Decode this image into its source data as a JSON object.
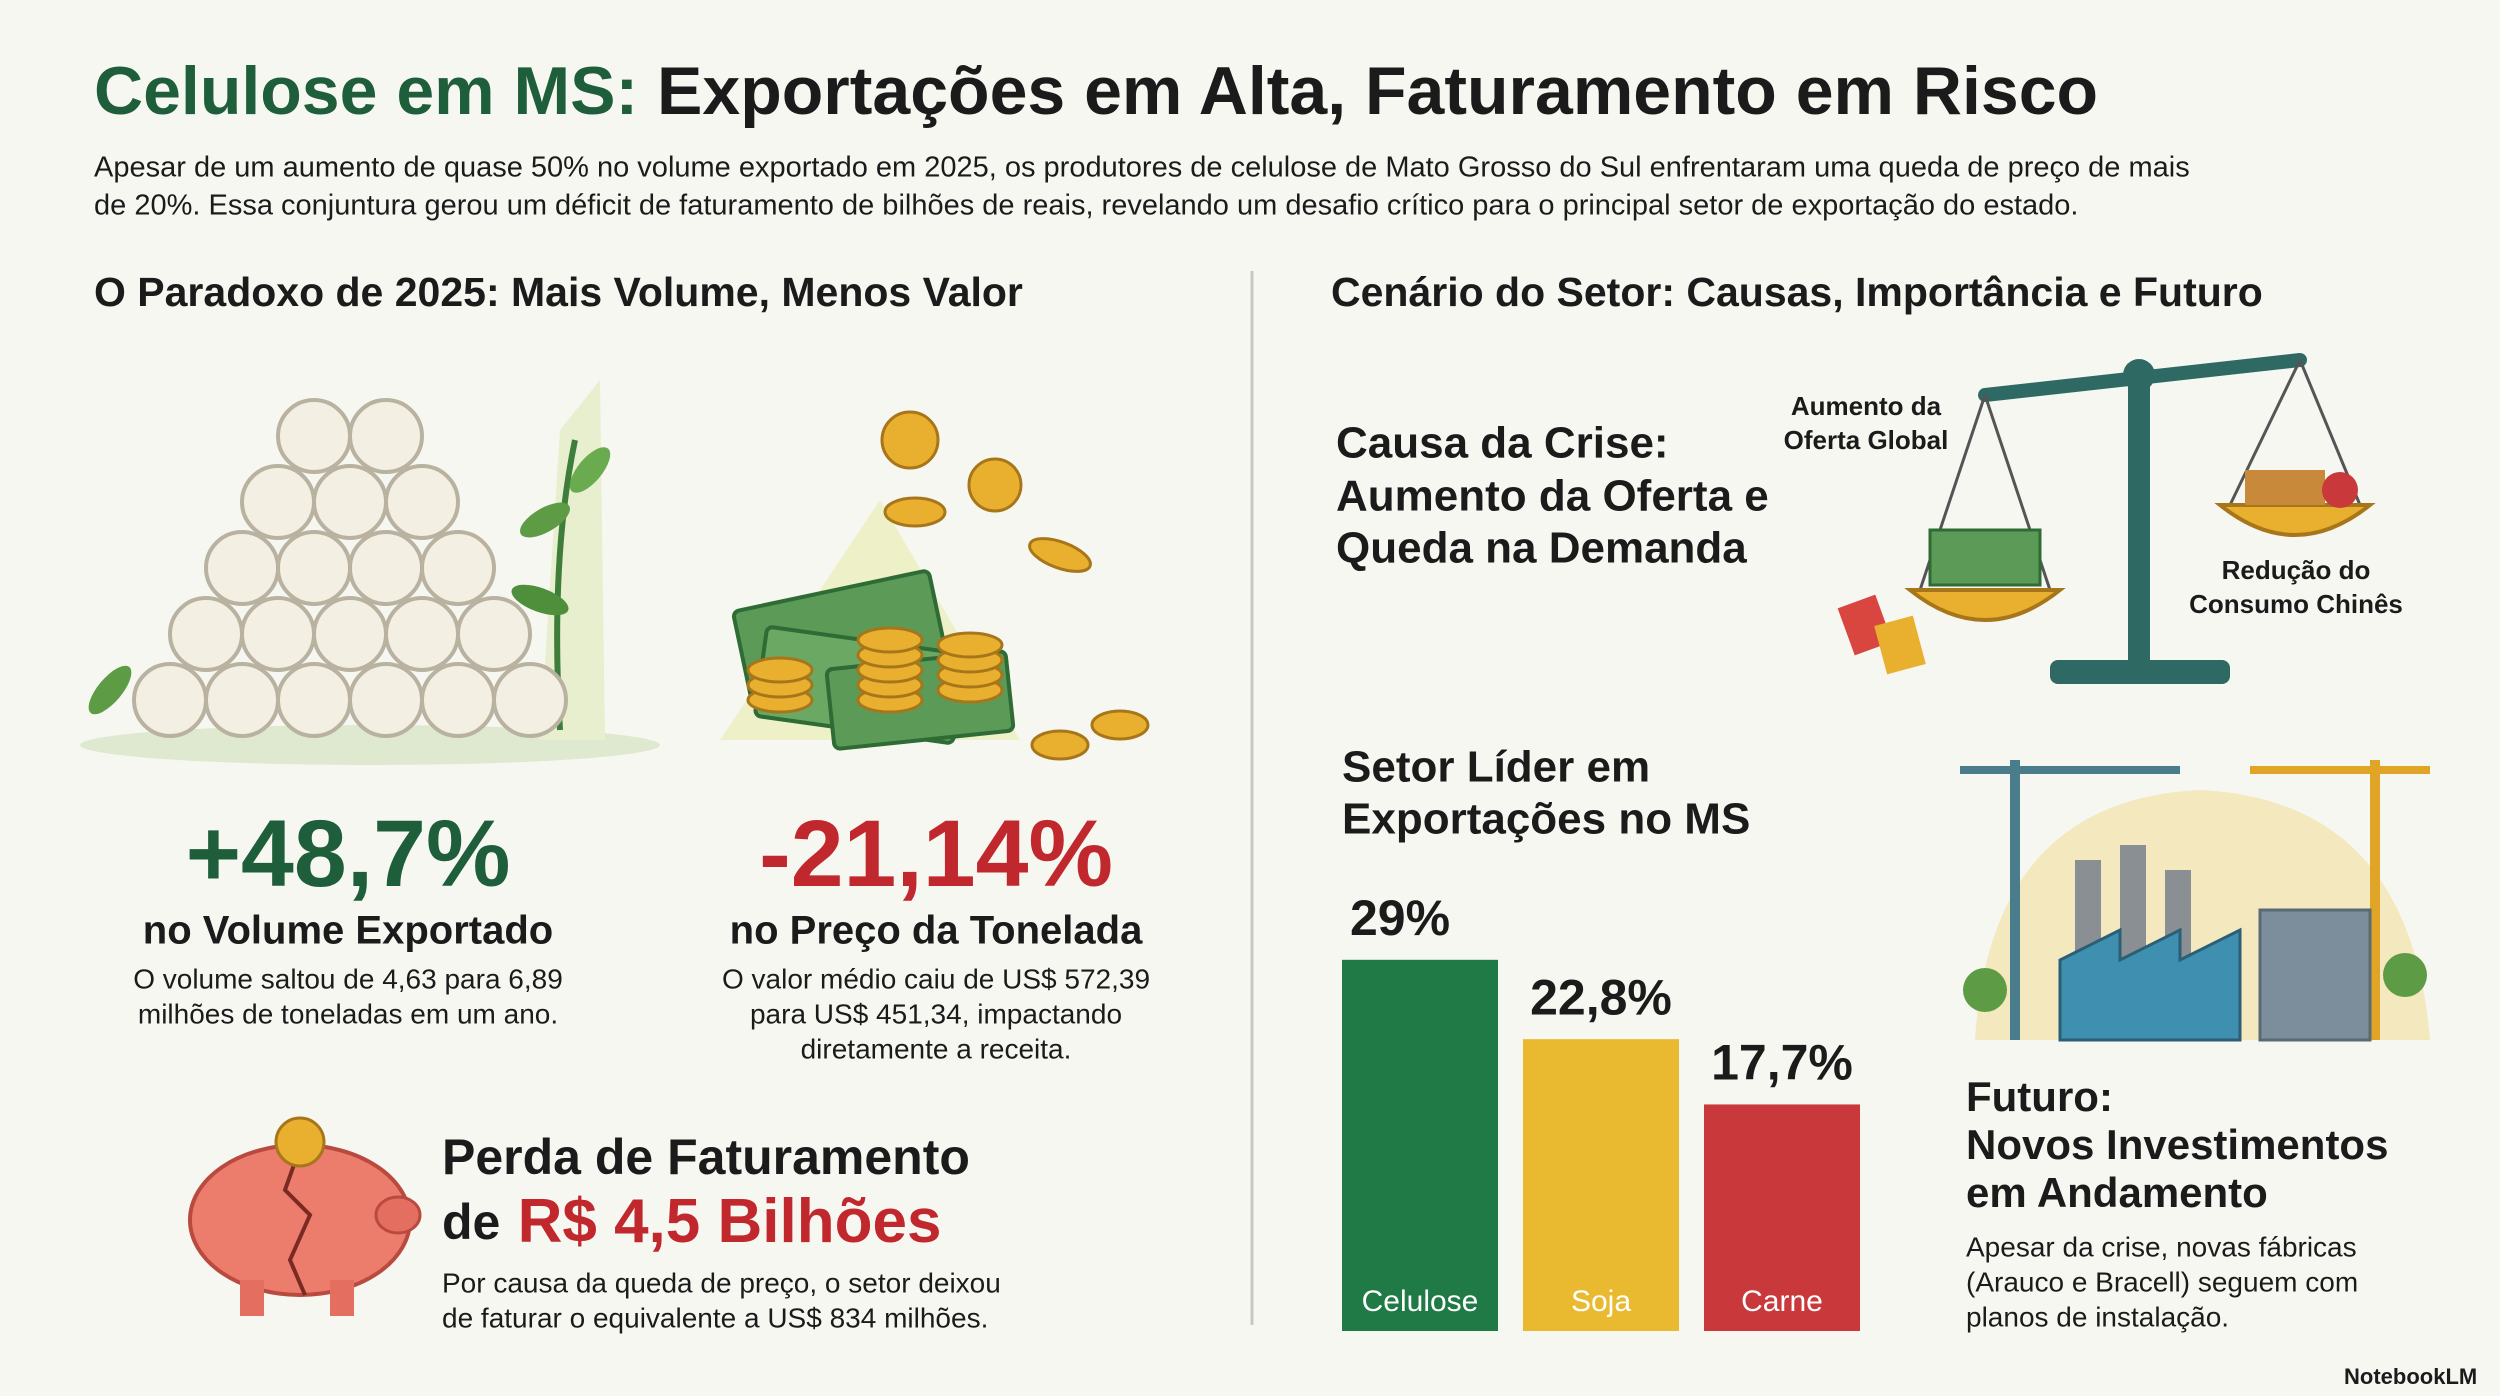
{
  "header": {
    "title_lead": "Celulose em MS:",
    "title_rest": "Exportações em Alta, Faturamento em Risco",
    "subtitle_lines": [
      "Apesar de um aumento de quase 50% no volume exportado em 2025, os produtores de celulose de Mato Grosso do Sul enfrentaram uma queda de preço de mais",
      "de 20%. Essa conjuntura gerou um déficit de faturamento de bilhões de reais, revelando um desafio crítico para o principal setor de exportação do estado."
    ]
  },
  "left": {
    "heading": "O Paradoxo de 2025: Mais Volume, Menos Valor",
    "volume": {
      "stat": "+48,7%",
      "label": "no Volume Exportado",
      "desc_lines": [
        "O volume saltou de 4,63 para 6,89",
        "milhões de toneladas em um ano."
      ]
    },
    "price": {
      "stat": "-21,14%",
      "label": "no Preço da Tonelada",
      "desc_lines": [
        "O valor médio caiu de US$ 572,39",
        "para US$ 451,34, impactando",
        "diretamente a receita."
      ]
    },
    "loss": {
      "heading": "Perda de Faturamento",
      "heading2_lead": "de",
      "amount": "R$ 4,5 Bilhões",
      "desc_lines": [
        "Por causa da queda de preço, o setor deixou",
        "de faturar o equivalente a US$ 834 milhões."
      ]
    }
  },
  "right": {
    "heading": "Cenário do Setor: Causas, Importância e Futuro",
    "cause": {
      "heading_lines": [
        "Causa da Crise:",
        "Aumento da Oferta e",
        "Queda na Demanda"
      ],
      "left_pan_lines": [
        "Aumento da",
        "Oferta Global"
      ],
      "right_pan_lines": [
        "Redução do",
        "Consumo Chinês"
      ]
    },
    "future": {
      "heading_lines": [
        "Futuro:",
        "Novos Investimentos",
        "em Andamento"
      ],
      "desc_lines": [
        "Apesar da crise, novas fábricas",
        "(Arauco e Bracell) seguem com",
        "planos de instalação."
      ]
    }
  },
  "chart_data": {
    "type": "bar",
    "title_lines": [
      "Setor Líder em",
      "Exportações no MS"
    ],
    "categories": [
      "Celulose",
      "Soja",
      "Carne"
    ],
    "values": [
      29,
      22.8,
      17.7
    ],
    "value_labels": [
      "29%",
      "22,8%",
      "17,7%"
    ],
    "colors": [
      "#1f7a45",
      "#e9b92f",
      "#c9393b"
    ]
  },
  "footer": {
    "brand": "NotebookLM"
  }
}
